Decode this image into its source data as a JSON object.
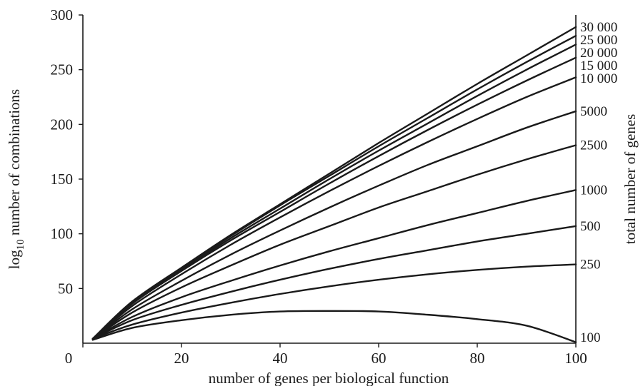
{
  "chart_data": {
    "type": "line",
    "xlabel": "number of genes per biological function",
    "ylabel_prefix": "log",
    "ylabel_subscript": "10",
    "ylabel_suffix": " number of combinations",
    "y2label": "total number of genes",
    "xlim": [
      0,
      100
    ],
    "ylim": [
      0,
      300
    ],
    "x_ticks": [
      0,
      20,
      40,
      60,
      80,
      100
    ],
    "y_ticks": [
      50,
      100,
      150,
      200,
      250,
      300
    ],
    "x_tick_labels": [
      "0",
      "20",
      "40",
      "60",
      "80",
      "100"
    ],
    "y_tick_labels": [
      "50",
      "100",
      "150",
      "200",
      "250",
      "300"
    ],
    "grid": false,
    "x": [
      2,
      10,
      20,
      30,
      40,
      50,
      60,
      70,
      80,
      90,
      100
    ],
    "series": [
      {
        "name": "30 000",
        "values": [
          4,
          38,
          69,
          99,
          127,
          155,
          183,
          210,
          237,
          263,
          289
        ]
      },
      {
        "name": "25 000",
        "values": [
          4,
          38,
          68,
          98,
          126,
          153,
          180,
          206,
          232,
          257,
          281
        ]
      },
      {
        "name": "20 000",
        "values": [
          4,
          37,
          67,
          96,
          123,
          150,
          176,
          201,
          226,
          250,
          273
        ]
      },
      {
        "name": "15 000",
        "values": [
          4,
          36,
          66,
          94,
          120,
          146,
          171,
          195,
          218,
          240,
          261
        ]
      },
      {
        "name": "10 000",
        "values": [
          4,
          34,
          63,
          90,
          115,
          139,
          162,
          184,
          205,
          225,
          243
        ]
      },
      {
        "name": "5000",
        "values": [
          4,
          31,
          57,
          81,
          103,
          124,
          144,
          163,
          180,
          197,
          212
        ]
      },
      {
        "name": "2500",
        "values": [
          4,
          28,
          51,
          71,
          90,
          107,
          124,
          139,
          154,
          168,
          181
        ]
      },
      {
        "name": "1000",
        "values": [
          4,
          24,
          42,
          57,
          71,
          84,
          96,
          108,
          119,
          130,
          140
        ]
      },
      {
        "name": "500",
        "values": [
          4,
          21,
          35,
          47,
          58,
          68,
          77,
          85,
          93,
          100,
          107
        ]
      },
      {
        "name": "250",
        "values": [
          4,
          17,
          28,
          37,
          45,
          52,
          58,
          63,
          67,
          70,
          72
        ]
      },
      {
        "name": "100",
        "values": [
          3,
          14,
          21,
          26,
          29,
          29.5,
          29,
          26,
          22,
          16,
          1
        ]
      }
    ]
  }
}
